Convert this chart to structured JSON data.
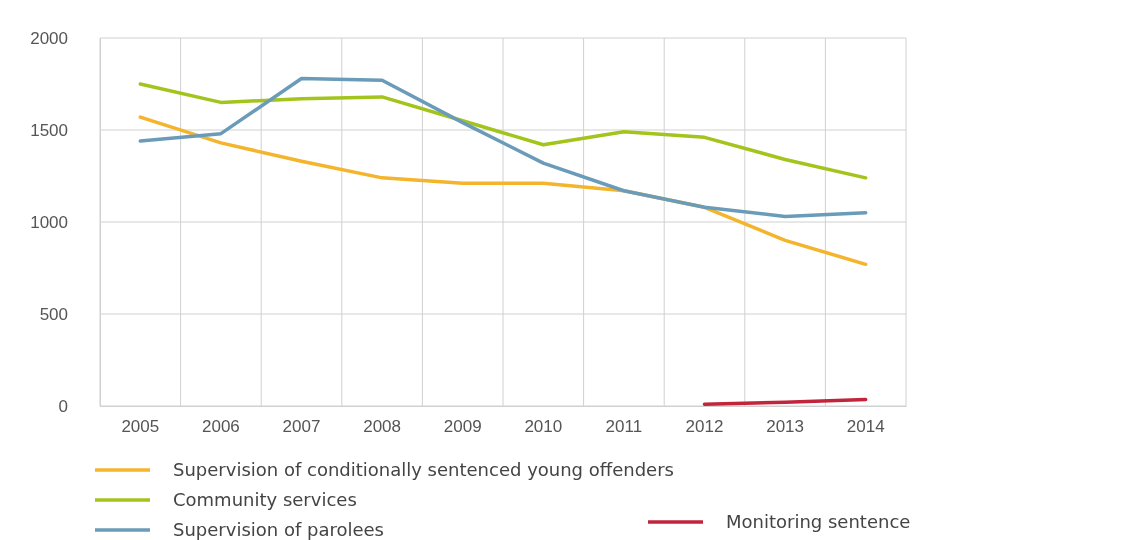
{
  "chart_data": {
    "type": "line",
    "categories": [
      "2005",
      "2006",
      "2007",
      "2008",
      "2009",
      "2010",
      "2011",
      "2012",
      "2013",
      "2014"
    ],
    "series": [
      {
        "name": "Supervision of conditionally sentenced young offenders",
        "color": "#f4b42c",
        "values": [
          1570,
          1430,
          1330,
          1240,
          1210,
          1210,
          1170,
          1080,
          900,
          770
        ]
      },
      {
        "name": "Community services",
        "color": "#a3c41c",
        "values": [
          1750,
          1650,
          1670,
          1680,
          1550,
          1420,
          1490,
          1460,
          1340,
          1240
        ]
      },
      {
        "name": "Supervision of parolees",
        "color": "#6a9bb8",
        "values": [
          1440,
          1480,
          1780,
          1770,
          1540,
          1320,
          1170,
          1080,
          1030,
          1050
        ]
      },
      {
        "name": "Monitoring sentence",
        "color": "#c2243c",
        "values": [
          null,
          null,
          null,
          null,
          null,
          null,
          null,
          10,
          20,
          35
        ]
      }
    ],
    "ylim": [
      0,
      2000
    ],
    "yticks": [
      0,
      500,
      1000,
      1500,
      2000
    ],
    "grid": true,
    "legend": "bottom",
    "marker": "none",
    "line_style": "solid"
  }
}
